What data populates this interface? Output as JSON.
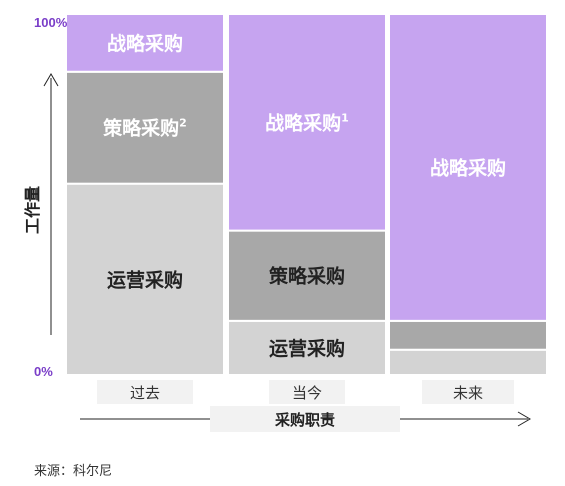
{
  "chart_data": {
    "type": "bar",
    "stacked": true,
    "ylabel": "工作量",
    "xlabel": "采购职责",
    "yticks": [
      "100%",
      "0%"
    ],
    "ylim": [
      0,
      100
    ],
    "categories": [
      "过去",
      "当今",
      "未来"
    ],
    "series": [
      {
        "name": "运营采购",
        "values": [
          53,
          15,
          7
        ],
        "color": "#d3d3d3"
      },
      {
        "name": "策略采购",
        "values": [
          31,
          25,
          8
        ],
        "color": "#a8a8a8"
      },
      {
        "name": "战略采购",
        "values": [
          16,
          60,
          85
        ],
        "color": "#c6a4f0"
      }
    ],
    "segment_labels": [
      [
        {
          "text": "运营采购",
          "sup": "",
          "color": "#222222"
        },
        {
          "text": "运营采购",
          "sup": "",
          "color": "#222222"
        },
        {
          "text": "",
          "sup": "",
          "color": "#222222"
        }
      ],
      [
        {
          "text": "策略采购",
          "sup": "2",
          "color": "#ffffff"
        },
        {
          "text": "策略采购",
          "sup": "",
          "color": "#222222"
        },
        {
          "text": "",
          "sup": "",
          "color": "#222222"
        }
      ],
      [
        {
          "text": "战略采购",
          "sup": "",
          "color": "#ffffff"
        },
        {
          "text": "战略采购",
          "sup": "1",
          "color": "#ffffff"
        },
        {
          "text": "战略采购",
          "sup": "",
          "color": "#ffffff"
        }
      ]
    ],
    "grid": false,
    "legend": "none",
    "source": "来源：科尔尼",
    "tick_color": "#7a3ec8"
  }
}
